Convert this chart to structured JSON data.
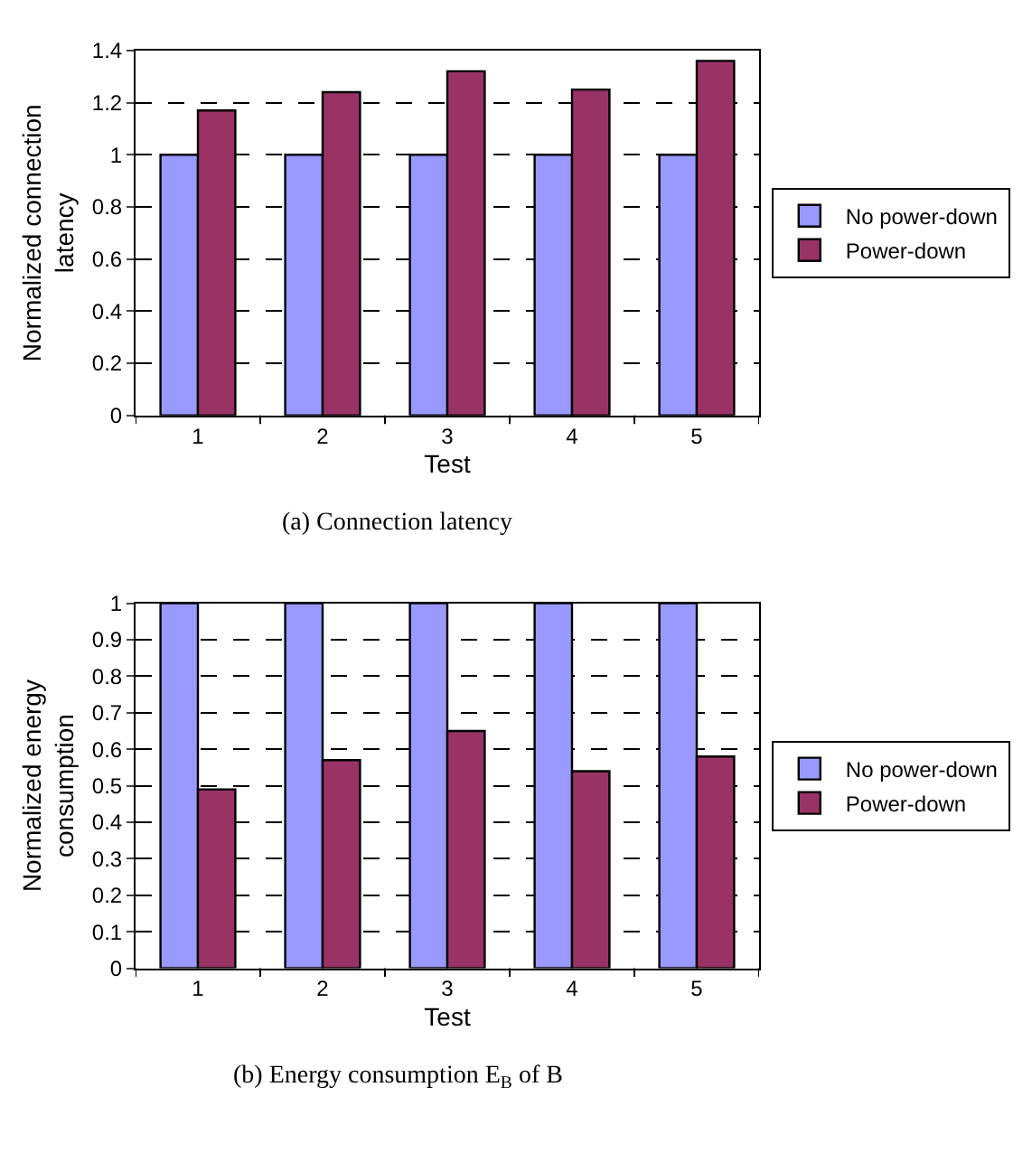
{
  "chart_data": [
    {
      "type": "bar",
      "categories": [
        "1",
        "2",
        "3",
        "4",
        "5"
      ],
      "xlabel": "Test",
      "ylabel": "Normalized connection latency",
      "ylim": [
        0,
        1.4
      ],
      "yticks": [
        0,
        0.2,
        0.4,
        0.6,
        0.8,
        1,
        1.2,
        1.4
      ],
      "grid": "y",
      "legend": "right",
      "series": [
        {
          "name": "No power-down",
          "color": "#9999ff",
          "values": [
            1,
            1,
            1,
            1,
            1
          ]
        },
        {
          "name": "Power-down",
          "color": "#993366",
          "values": [
            1.17,
            1.24,
            1.32,
            1.25,
            1.36
          ]
        }
      ],
      "annotations": [
        "(a) Connection latency"
      ]
    },
    {
      "type": "bar",
      "categories": [
        "1",
        "2",
        "3",
        "4",
        "5"
      ],
      "xlabel": "Test",
      "ylabel": "Normalized energy consumption",
      "ylim": [
        0,
        1
      ],
      "yticks": [
        0,
        0.1,
        0.2,
        0.3,
        0.4,
        0.5,
        0.6,
        0.7,
        0.8,
        0.9,
        1
      ],
      "grid": "y",
      "legend": "right",
      "series": [
        {
          "name": "No power-down",
          "color": "#9999ff",
          "values": [
            1,
            1,
            1,
            1,
            1
          ]
        },
        {
          "name": "Power-down",
          "color": "#993366",
          "values": [
            0.49,
            0.57,
            0.65,
            0.54,
            0.58
          ]
        }
      ],
      "annotations": [
        "(b) Energy consumption E$_{B}$ of B"
      ]
    }
  ]
}
